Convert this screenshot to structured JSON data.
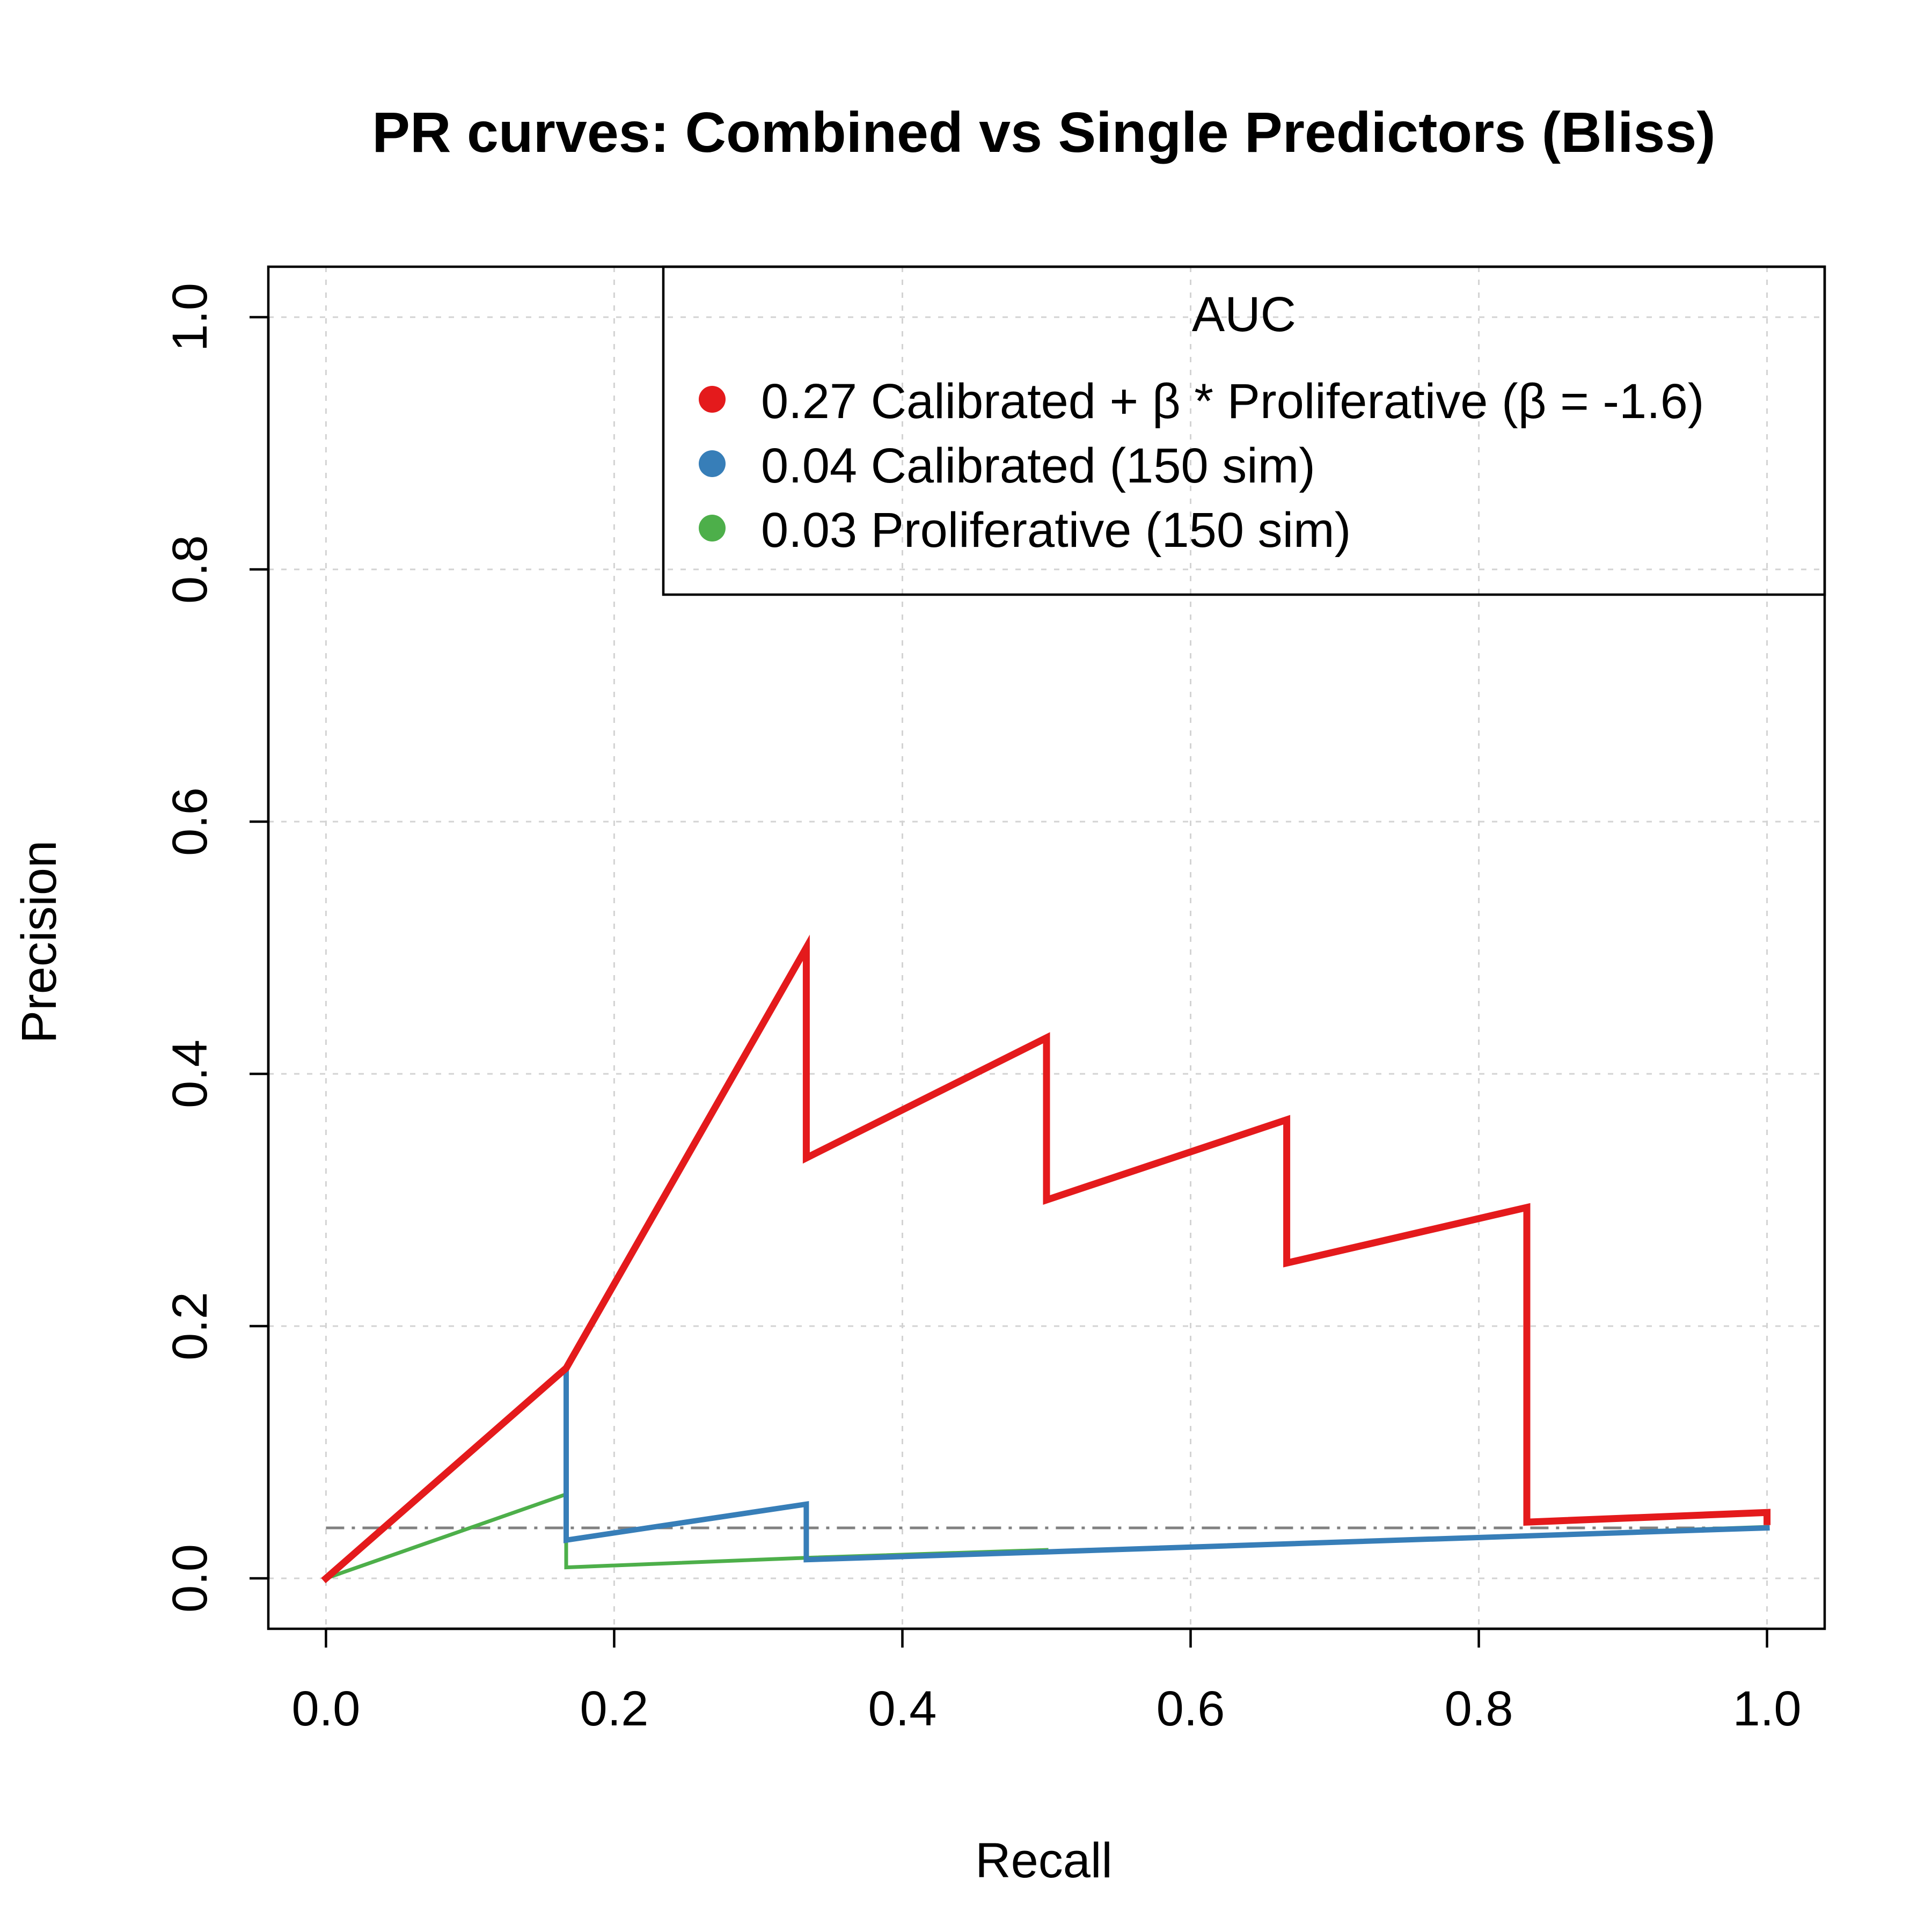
{
  "chart_data": {
    "type": "line",
    "title": "PR curves: Combined vs Single Predictors (Bliss)",
    "xlabel": "Recall",
    "ylabel": "Precision",
    "xlim": [
      -0.04,
      1.04
    ],
    "ylim": [
      -0.04,
      1.04
    ],
    "xticks": [
      0,
      0.2,
      0.4,
      0.6,
      0.8,
      1
    ],
    "yticks": [
      0,
      0.2,
      0.4,
      0.6,
      0.8,
      1
    ],
    "xtick_labels": [
      "0.0",
      "0.2",
      "0.4",
      "0.6",
      "0.8",
      "1.0"
    ],
    "ytick_labels": [
      "0.0",
      "0.2",
      "0.4",
      "0.6",
      "0.8",
      "1.0"
    ],
    "grid": true,
    "baseline_precision": 0.04,
    "legend": {
      "title": "AUC",
      "position": "top-right",
      "entries": [
        "0.27 Calibrated + β * Proliferative (β = -1.6)",
        "0.04 Calibrated (150 sim)",
        "0.03 Proliferative (150 sim)"
      ]
    },
    "series": [
      {
        "auc": 0.27,
        "color": "#E41A1C",
        "points": [
          [
            0,
            0
          ],
          [
            0.1667,
            0.1667
          ],
          [
            0.3333,
            0.5
          ],
          [
            0.3333,
            0.3333
          ],
          [
            0.5,
            0.4286
          ],
          [
            0.5,
            0.3
          ],
          [
            0.6667,
            0.3636
          ],
          [
            0.6667,
            0.25
          ],
          [
            0.8333,
            0.2941
          ],
          [
            0.8333,
            0.0446
          ],
          [
            1,
            0.0522
          ],
          [
            1,
            0.045
          ]
        ]
      },
      {
        "auc": 0.04,
        "color": "#377EB8",
        "points": [
          [
            0,
            0
          ],
          [
            0.1667,
            0.1667
          ],
          [
            0.1667,
            0.0303
          ],
          [
            0.3333,
            0.0588
          ],
          [
            0.3333,
            0.0148
          ],
          [
            0.5,
            0.021
          ],
          [
            1,
            0.04
          ]
        ]
      },
      {
        "auc": 0.03,
        "color": "#4DAF4A",
        "points": [
          [
            0,
            0
          ],
          [
            0.1667,
            0.0667
          ],
          [
            0.1667,
            0.0087
          ],
          [
            0.3333,
            0.0163
          ],
          [
            0.5,
            0.0225
          ],
          [
            0.5,
            0.0205
          ],
          [
            1,
            0.0408
          ]
        ]
      }
    ]
  }
}
